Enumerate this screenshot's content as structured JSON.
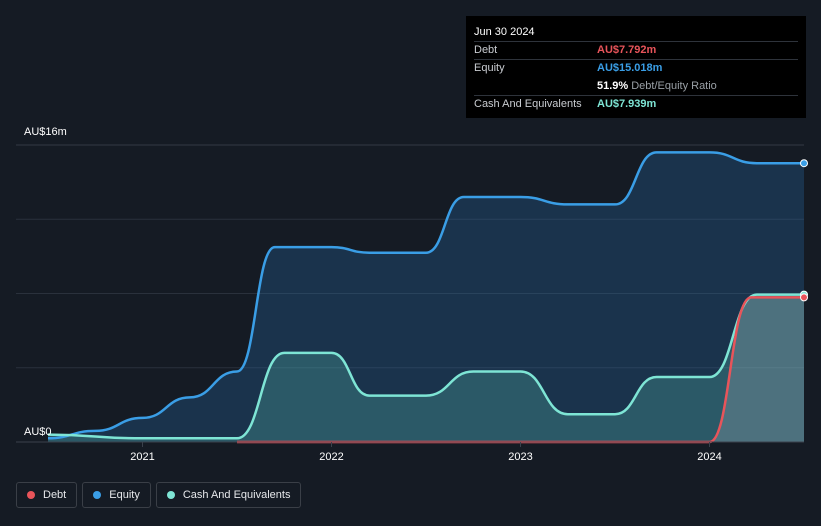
{
  "tooltip": {
    "date": "Jun 30 2024",
    "rows": [
      {
        "label": "Debt",
        "value": "AU$7.792m",
        "color": "#e8545a"
      },
      {
        "label": "Equity",
        "value": "AU$15.018m",
        "color": "#3a9ee6"
      },
      {
        "label": "",
        "value": "51.9%",
        "sub": "Debt/Equity Ratio",
        "color": "#ffffff"
      },
      {
        "label": "Cash And Equivalents",
        "value": "AU$7.939m",
        "color": "#7ee5d5"
      }
    ]
  },
  "legend": [
    {
      "label": "Debt",
      "color": "#e8545a"
    },
    {
      "label": "Equity",
      "color": "#3a9ee6"
    },
    {
      "label": "Cash And Equivalents",
      "color": "#7ee5d5"
    }
  ],
  "chart_data": {
    "type": "area",
    "ylabel_top": "AU$16m",
    "ylabel_bottom": "AU$0",
    "ylim": [
      0,
      16
    ],
    "xlim": [
      2020.5,
      2024.5
    ],
    "x_ticks": [
      2021,
      2022,
      2023,
      2024
    ],
    "x_tick_labels": [
      "2021",
      "2022",
      "2023",
      "2024"
    ],
    "grid": true,
    "series": [
      {
        "name": "Equity",
        "color": "#3a9ee6",
        "points": [
          [
            2020.5,
            0.2
          ],
          [
            2020.75,
            0.6
          ],
          [
            2021.0,
            1.3
          ],
          [
            2021.25,
            2.4
          ],
          [
            2021.5,
            3.8
          ],
          [
            2021.7,
            10.5
          ],
          [
            2021.75,
            10.5
          ],
          [
            2022.0,
            10.5
          ],
          [
            2022.2,
            10.2
          ],
          [
            2022.5,
            10.2
          ],
          [
            2022.7,
            13.2
          ],
          [
            2023.0,
            13.2
          ],
          [
            2023.25,
            12.8
          ],
          [
            2023.5,
            12.8
          ],
          [
            2023.72,
            15.6
          ],
          [
            2024.0,
            15.6
          ],
          [
            2024.25,
            15.02
          ],
          [
            2024.5,
            15.02
          ]
        ]
      },
      {
        "name": "Cash And Equivalents",
        "color": "#7ee5d5",
        "points": [
          [
            2020.5,
            0.4
          ],
          [
            2021.0,
            0.2
          ],
          [
            2021.5,
            0.2
          ],
          [
            2021.75,
            4.8
          ],
          [
            2022.0,
            4.8
          ],
          [
            2022.2,
            2.5
          ],
          [
            2022.5,
            2.5
          ],
          [
            2022.75,
            3.8
          ],
          [
            2023.0,
            3.8
          ],
          [
            2023.25,
            1.5
          ],
          [
            2023.5,
            1.5
          ],
          [
            2023.72,
            3.5
          ],
          [
            2024.0,
            3.5
          ],
          [
            2024.25,
            7.94
          ],
          [
            2024.5,
            7.94
          ]
        ]
      },
      {
        "name": "Debt",
        "color": "#e8545a",
        "points": [
          [
            2021.5,
            0
          ],
          [
            2024.0,
            0
          ],
          [
            2024.22,
            7.79
          ],
          [
            2024.5,
            7.79
          ]
        ]
      }
    ]
  }
}
